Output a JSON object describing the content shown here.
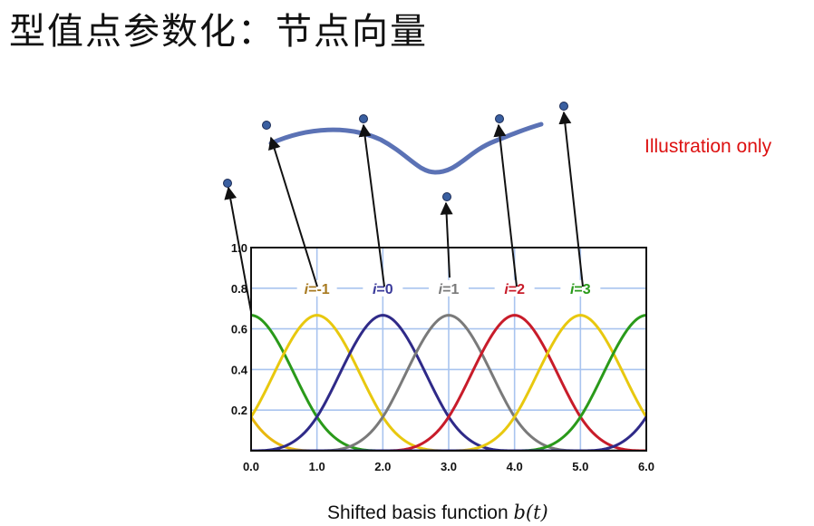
{
  "title": "型值点参数化：节点向量",
  "note": {
    "text": "Illustration only",
    "color": "#dd1111"
  },
  "caption": {
    "prefix": "Shifted basis function ",
    "math": "b(t)"
  },
  "chart_data": {
    "type": "line",
    "xlim": [
      0,
      6
    ],
    "ylim": [
      0,
      1
    ],
    "x_ticks": [
      "0.0",
      "1.0",
      "2.0",
      "3.0",
      "4.0",
      "5.0",
      "6.0"
    ],
    "y_ticks": [
      "0.2",
      "0.4",
      "0.6",
      "0.8",
      "1.0"
    ],
    "grid": true,
    "grid_color": "#a9c4ef",
    "basis": "uniform cubic B-spline, peak 2/3 at each knot",
    "series": [
      {
        "center": -1,
        "color": "#e8b70f"
      },
      {
        "center": 0,
        "color": "#2a9a1a"
      },
      {
        "center": 1,
        "color": "#e8c80f"
      },
      {
        "center": 2,
        "color": "#2f2a88"
      },
      {
        "center": 3,
        "color": "#7a7a7a"
      },
      {
        "center": 4,
        "color": "#c81c2a"
      },
      {
        "center": 5,
        "color": "#e8c80f"
      },
      {
        "center": 6,
        "color": "#2a9a1a"
      },
      {
        "center": 7,
        "color": "#2f2a88"
      }
    ],
    "labels": [
      {
        "knot": 1,
        "prefix": "i",
        "value": "=-1",
        "color": "#a87a20"
      },
      {
        "knot": 2,
        "prefix": "i",
        "value": "=0",
        "color": "#3a3a9a"
      },
      {
        "knot": 3,
        "prefix": "i",
        "value": "=1",
        "color": "#7a7a7a"
      },
      {
        "knot": 4,
        "prefix": "i",
        "value": "=2",
        "color": "#c81c2a"
      },
      {
        "knot": 5,
        "prefix": "i",
        "value": "=3",
        "color": "#2a9a1a"
      }
    ]
  },
  "control_curve": {
    "color": "#5b72b5",
    "point_color": "#3a5fa0"
  }
}
